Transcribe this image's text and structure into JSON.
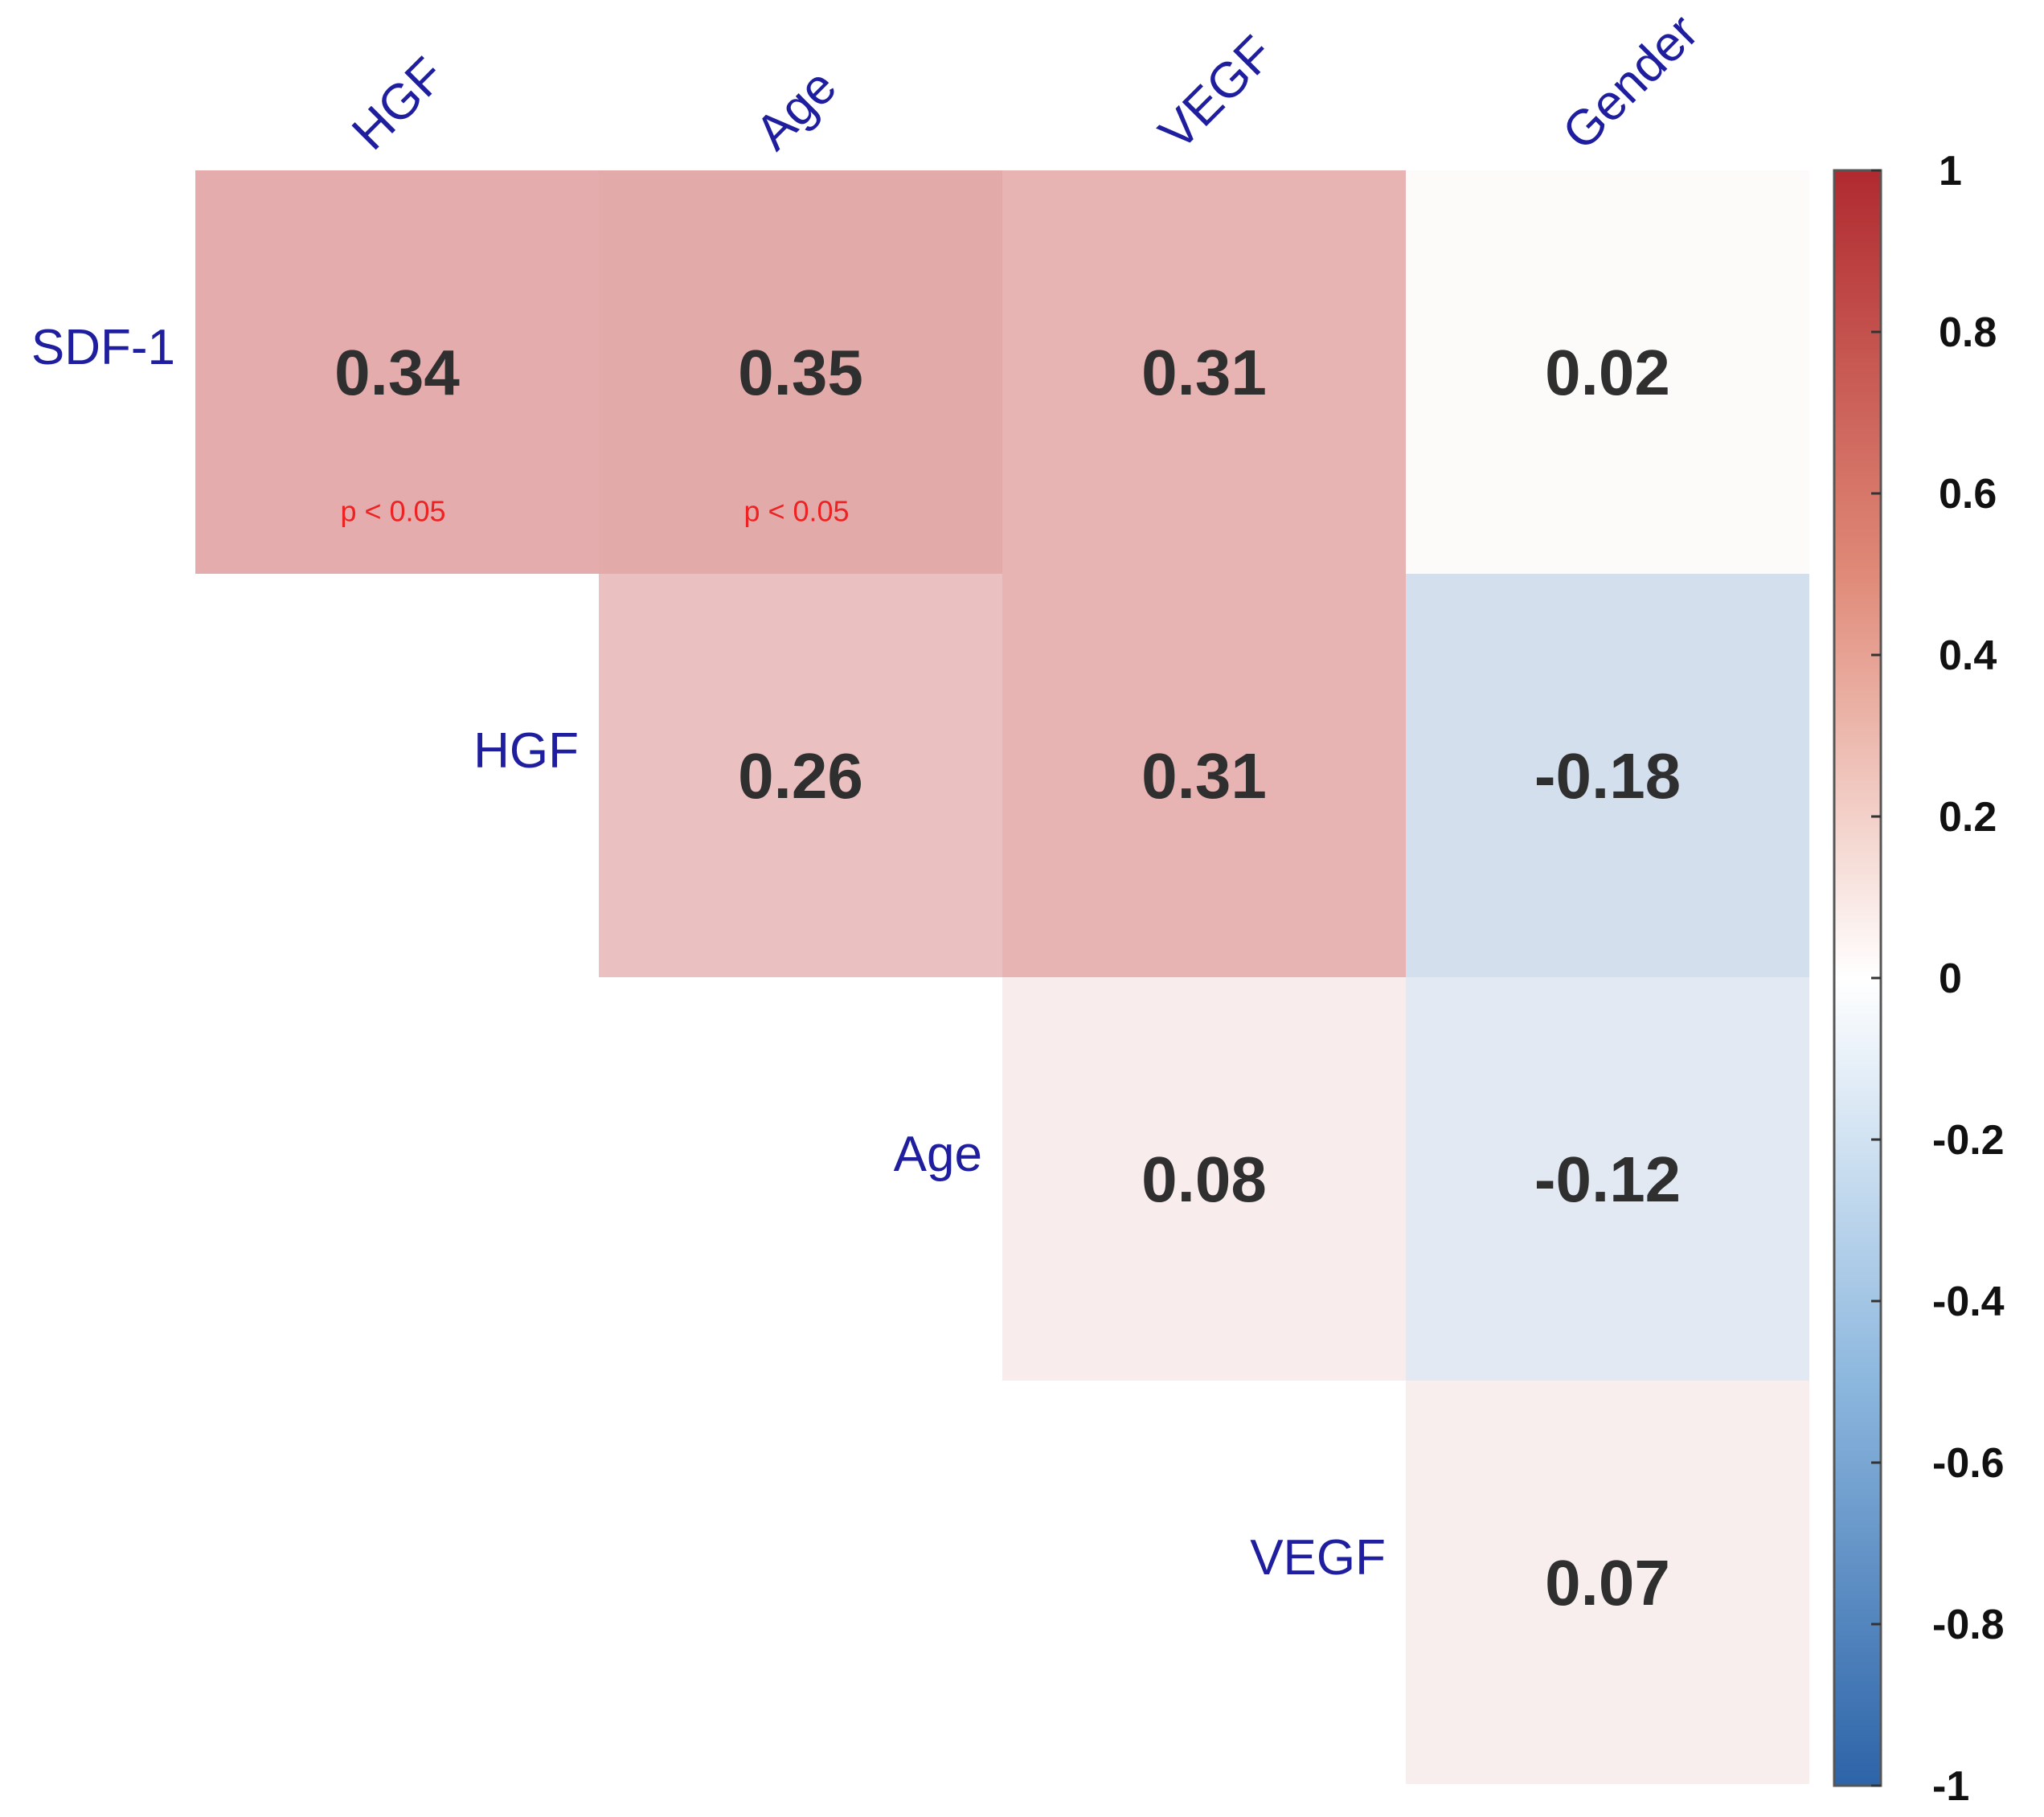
{
  "chart_data": {
    "type": "heatmap",
    "subtype": "correlation-matrix-upper-triangle",
    "columns": [
      "HGF",
      "Age",
      "VEGF",
      "Gender"
    ],
    "rows": [
      "SDF-1",
      "HGF",
      "Age",
      "VEGF"
    ],
    "cells": [
      {
        "row": "SDF-1",
        "col": "HGF",
        "value": 0.34,
        "label": "0.34",
        "note": "p < 0.05"
      },
      {
        "row": "SDF-1",
        "col": "Age",
        "value": 0.35,
        "label": "0.35",
        "note": "p < 0.05"
      },
      {
        "row": "SDF-1",
        "col": "VEGF",
        "value": 0.31,
        "label": "0.31"
      },
      {
        "row": "SDF-1",
        "col": "Gender",
        "value": 0.02,
        "label": "0.02"
      },
      {
        "row": "HGF",
        "col": "Age",
        "value": 0.26,
        "label": "0.26"
      },
      {
        "row": "HGF",
        "col": "VEGF",
        "value": 0.31,
        "label": "0.31"
      },
      {
        "row": "HGF",
        "col": "Gender",
        "value": -0.18,
        "label": "-0.18"
      },
      {
        "row": "Age",
        "col": "VEGF",
        "value": 0.08,
        "label": "0.08"
      },
      {
        "row": "Age",
        "col": "Gender",
        "value": -0.12,
        "label": "-0.12"
      },
      {
        "row": "VEGF",
        "col": "Gender",
        "value": 0.07,
        "label": "0.07"
      }
    ],
    "colorbar": {
      "range": [
        -1,
        1
      ],
      "ticks": [
        1,
        0.8,
        0.6,
        0.4,
        0.2,
        0,
        -0.2,
        -0.4,
        -0.6,
        -0.8,
        -1
      ],
      "tick_labels": [
        "1",
        "0.8",
        "0.6",
        "0.4",
        "0.2",
        "0",
        "-0.2",
        "-0.4",
        "-0.6",
        "-0.8",
        "-1"
      ],
      "colors": {
        "low": "#3b6fb0",
        "mid": "#ffffff",
        "high": "#c03c3c"
      }
    },
    "legend_placement": "right",
    "grid": false
  }
}
